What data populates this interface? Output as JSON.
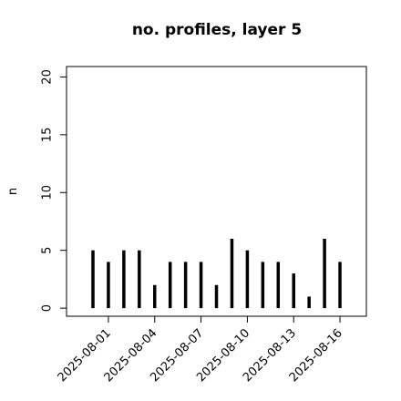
{
  "chart_data": {
    "type": "bar",
    "title": "no. profiles, layer 5",
    "y_label": "n",
    "categories": [
      null,
      "2025-08-01",
      null,
      null,
      "2025-08-04",
      null,
      null,
      "2025-08-07",
      null,
      null,
      "2025-08-10",
      null,
      null,
      "2025-08-13",
      null,
      null,
      "2025-08-16"
    ],
    "category_colors": [
      null,
      "#000000",
      null,
      null,
      "#000000",
      null,
      null,
      "#228B22",
      null,
      null,
      "#000000",
      null,
      null,
      "#000000",
      null,
      null,
      "#000000"
    ],
    "values": [
      5,
      4,
      5,
      5,
      2,
      4,
      4,
      4,
      2,
      6,
      5,
      4,
      4,
      3,
      1,
      6,
      4
    ],
    "color": "#000000",
    "ylim": [
      -0.7,
      20.9
    ],
    "yticks": [
      0,
      5,
      10,
      15,
      20
    ]
  }
}
